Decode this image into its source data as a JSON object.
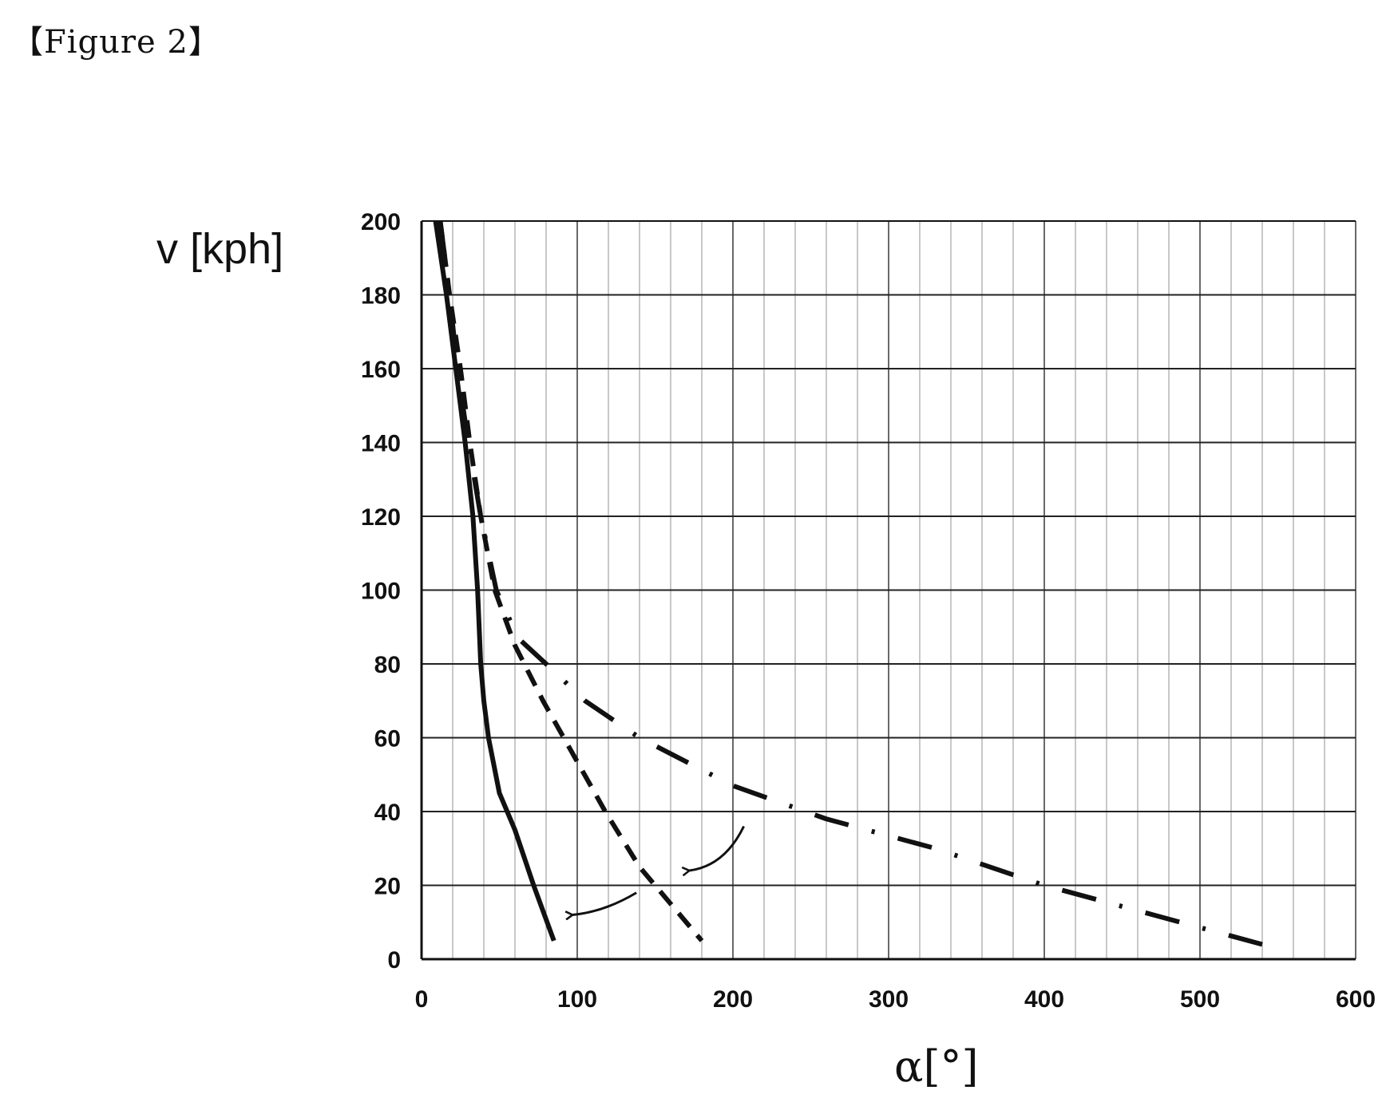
{
  "figure_label": "【Figure 2】",
  "chart_data": {
    "type": "line",
    "xlabel": "α[°]",
    "ylabel": "v [kph]",
    "xlim": [
      0,
      600
    ],
    "ylim": [
      0,
      200
    ],
    "xticks": [
      "0",
      "100",
      "200",
      "300",
      "400",
      "500",
      "600"
    ],
    "yticks": [
      "0",
      "20",
      "40",
      "60",
      "80",
      "100",
      "120",
      "140",
      "160",
      "180",
      "200"
    ],
    "grid": true,
    "series": [
      {
        "style": "solid",
        "x": [
          9,
          16,
          22,
          28,
          33,
          36,
          38,
          40,
          43,
          50,
          60,
          72,
          85
        ],
        "y": [
          200,
          180,
          160,
          140,
          120,
          100,
          80,
          70,
          60,
          45,
          35,
          20,
          5
        ]
      },
      {
        "style": "dashed",
        "x": [
          12,
          18,
          25,
          31,
          38,
          47,
          60,
          78,
          98,
          118,
          140,
          160,
          180
        ],
        "y": [
          200,
          180,
          160,
          140,
          120,
          100,
          85,
          70,
          55,
          40,
          25,
          15,
          5
        ]
      },
      {
        "style": "dash-dot",
        "x": [
          12,
          18,
          23,
          30,
          38,
          48,
          62,
          80,
          105,
          140,
          200,
          260,
          330,
          400,
          470,
          540
        ],
        "y": [
          200,
          180,
          160,
          140,
          120,
          100,
          87,
          80,
          70,
          60,
          47,
          38,
          30,
          20,
          12,
          4
        ]
      }
    ],
    "annotations": [
      {
        "type": "arrow",
        "from": [
          207,
          36
        ],
        "to": [
          172,
          24
        ]
      },
      {
        "type": "arrow",
        "from": [
          138,
          18
        ],
        "to": [
          97,
          12
        ]
      }
    ],
    "colors": {
      "line": "#111111",
      "grid": "#444444",
      "minor_grid": "#9a9a9a"
    }
  }
}
